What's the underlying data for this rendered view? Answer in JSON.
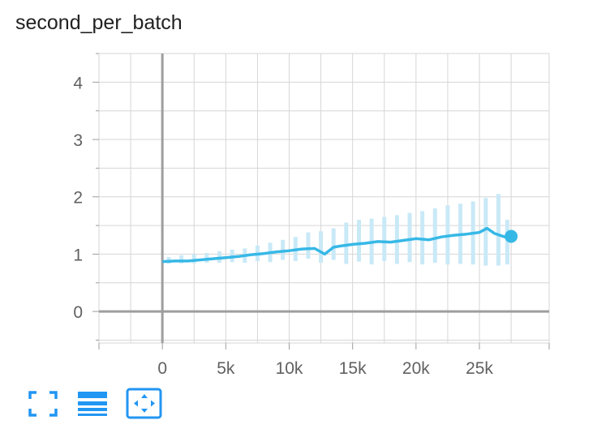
{
  "title": "second_per_batch",
  "colors": {
    "series": "#36b8e6",
    "series_raw": "#c9e9f7",
    "grid": "#d6d6d6",
    "axis": "#9e9e9e",
    "icon": "#2196f3"
  },
  "toolbar": {
    "icons": [
      "fullscreen-icon",
      "legend-list-icon",
      "fit-domain-icon"
    ]
  },
  "chart_data": {
    "type": "line",
    "title": "second_per_batch",
    "xlabel": "",
    "ylabel": "",
    "xlim": [
      -5000,
      30500
    ],
    "ylim": [
      -0.55,
      4.5
    ],
    "x_ticks": [
      0,
      5000,
      10000,
      15000,
      20000,
      25000
    ],
    "x_tick_labels": [
      "0",
      "5k",
      "10k",
      "15k",
      "20k",
      "25k"
    ],
    "y_ticks": [
      0,
      1,
      2,
      3,
      4
    ],
    "y_tick_labels": [
      "0",
      "1",
      "2",
      "3",
      "4"
    ],
    "grid": true,
    "series": [
      {
        "smoothed": true,
        "x": [
          0,
          1000,
          2000,
          3000,
          4000,
          5000,
          6000,
          7000,
          8000,
          9000,
          10000,
          11000,
          12000,
          12800,
          13500,
          14000,
          15000,
          16000,
          17000,
          18000,
          19000,
          20000,
          21000,
          22000,
          23000,
          24000,
          25000,
          25600,
          26200,
          27000,
          27500
        ],
        "y": [
          0.87,
          0.88,
          0.88,
          0.9,
          0.92,
          0.94,
          0.96,
          0.99,
          1.01,
          1.04,
          1.06,
          1.09,
          1.1,
          1.0,
          1.12,
          1.14,
          1.17,
          1.19,
          1.22,
          1.21,
          1.24,
          1.27,
          1.25,
          1.3,
          1.33,
          1.35,
          1.38,
          1.45,
          1.36,
          1.3,
          1.31
        ]
      },
      {
        "raw": true,
        "x": [
          500,
          1500,
          2500,
          3500,
          4500,
          5500,
          6500,
          7500,
          8500,
          9500,
          10500,
          11500,
          12500,
          13500,
          14500,
          15500,
          16500,
          17500,
          18500,
          19500,
          20500,
          21500,
          22500,
          23500,
          24500,
          25500,
          26500,
          27200
        ],
        "y_low": [
          0.83,
          0.84,
          0.84,
          0.85,
          0.85,
          0.86,
          0.85,
          0.88,
          0.86,
          0.9,
          0.88,
          0.92,
          0.85,
          0.9,
          0.83,
          0.87,
          0.82,
          0.88,
          0.83,
          0.86,
          0.82,
          0.85,
          0.82,
          0.83,
          0.82,
          0.8,
          0.8,
          0.82
        ],
        "y_high": [
          0.95,
          0.98,
          1.0,
          1.02,
          1.05,
          1.08,
          1.1,
          1.15,
          1.2,
          1.25,
          1.3,
          1.38,
          1.4,
          1.45,
          1.55,
          1.6,
          1.62,
          1.65,
          1.68,
          1.72,
          1.75,
          1.8,
          1.85,
          1.88,
          1.92,
          1.98,
          2.05,
          1.6
        ]
      }
    ],
    "last_point": {
      "x": 27500,
      "y": 1.31
    }
  }
}
